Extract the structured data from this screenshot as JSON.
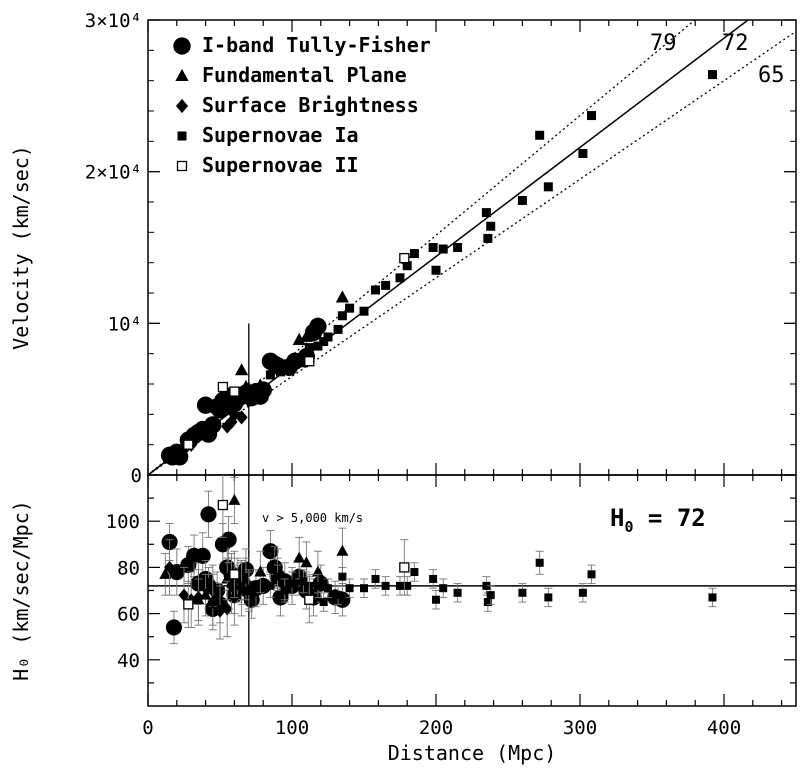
{
  "chart_data": [
    {
      "type": "scatter",
      "xlabel": "Distance (Mpc)",
      "ylabel": "Velocity (km/sec)",
      "xlim": [
        0,
        450
      ],
      "ylim": [
        0,
        30000
      ],
      "y_tick_labels": [
        "0",
        "10⁴",
        "2×10⁴",
        "3×10⁴"
      ],
      "y_ticks": [
        0,
        10000,
        20000,
        30000
      ],
      "legend_position": "top-left",
      "lines": [
        {
          "label": "79",
          "slope": 79,
          "style": "dotted"
        },
        {
          "label": "72",
          "slope": 72,
          "style": "solid"
        },
        {
          "label": "65",
          "slope": 65,
          "style": "dotted"
        }
      ],
      "vertical_line_x": 70,
      "series": [
        {
          "name": "I-band Tully-Fisher",
          "marker": "circle",
          "points": [
            [
              15,
              1300
            ],
            [
              17,
              1200
            ],
            [
              20,
              1500
            ],
            [
              22,
              1200
            ],
            [
              28,
              2300
            ],
            [
              32,
              2600
            ],
            [
              35,
              2800
            ],
            [
              38,
              3000
            ],
            [
              42,
              2700
            ],
            [
              40,
              4600
            ],
            [
              45,
              3300
            ],
            [
              48,
              4500
            ],
            [
              50,
              4300
            ],
            [
              52,
              4900
            ],
            [
              55,
              5200
            ],
            [
              58,
              4600
            ],
            [
              60,
              4700
            ],
            [
              62,
              5000
            ],
            [
              65,
              5200
            ],
            [
              68,
              5400
            ],
            [
              70,
              5300
            ],
            [
              72,
              5100
            ],
            [
              75,
              5500
            ],
            [
              78,
              5200
            ],
            [
              80,
              5600
            ],
            [
              85,
              7500
            ],
            [
              88,
              7300
            ],
            [
              90,
              7200
            ],
            [
              98,
              7100
            ],
            [
              102,
              7500
            ],
            [
              110,
              7800
            ],
            [
              115,
              9400
            ],
            [
              118,
              9800
            ]
          ]
        },
        {
          "name": "Fundamental Plane",
          "marker": "triangle",
          "points": [
            [
              38,
              2700
            ],
            [
              42,
              4600
            ],
            [
              55,
              5300
            ],
            [
              60,
              5000
            ],
            [
              65,
              6900
            ],
            [
              68,
              5800
            ],
            [
              70,
              5700
            ],
            [
              78,
              5900
            ],
            [
              95,
              7200
            ],
            [
              105,
              8900
            ],
            [
              110,
              9100
            ],
            [
              118,
              9900
            ],
            [
              135,
              11700
            ]
          ]
        },
        {
          "name": "Surface Brightness",
          "marker": "diamond",
          "points": [
            [
              20,
              1400
            ],
            [
              25,
              1700
            ],
            [
              30,
              2000
            ],
            [
              40,
              2800
            ],
            [
              45,
              3000
            ],
            [
              55,
              3200
            ],
            [
              58,
              3500
            ],
            [
              60,
              4000
            ],
            [
              65,
              3800
            ],
            [
              70,
              4900
            ]
          ]
        },
        {
          "name": "Supernovae Ia",
          "marker": "square",
          "points": [
            [
              85,
              6600
            ],
            [
              90,
              7000
            ],
            [
              92,
              6800
            ],
            [
              95,
              7300
            ],
            [
              100,
              7100
            ],
            [
              105,
              7700
            ],
            [
              108,
              7400
            ],
            [
              112,
              8400
            ],
            [
              118,
              8500
            ],
            [
              122,
              8800
            ],
            [
              125,
              9100
            ],
            [
              132,
              9600
            ],
            [
              135,
              10500
            ],
            [
              140,
              11000
            ],
            [
              150,
              10800
            ],
            [
              158,
              12200
            ],
            [
              165,
              12500
            ],
            [
              175,
              13000
            ],
            [
              180,
              13800
            ],
            [
              185,
              14600
            ],
            [
              198,
              15000
            ],
            [
              200,
              13500
            ],
            [
              205,
              14900
            ],
            [
              215,
              15000
            ],
            [
              235,
              17300
            ],
            [
              238,
              16400
            ],
            [
              236,
              15600
            ],
            [
              260,
              18100
            ],
            [
              272,
              22400
            ],
            [
              278,
              19000
            ],
            [
              302,
              21200
            ],
            [
              308,
              23700
            ],
            [
              392,
              26400
            ]
          ]
        },
        {
          "name": "Supernovae II",
          "marker": "open-square",
          "points": [
            [
              28,
              2000
            ],
            [
              52,
              5800
            ],
            [
              60,
              5500
            ],
            [
              112,
              7500
            ],
            [
              178,
              14300
            ]
          ]
        }
      ]
    },
    {
      "type": "scatter",
      "xlabel": "Distance (Mpc)",
      "ylabel": "H₀ (km/sec/Mpc)",
      "xlim": [
        0,
        450
      ],
      "ylim": [
        20,
        120
      ],
      "x_ticks": [
        0,
        100,
        200,
        300,
        400
      ],
      "y_ticks": [
        40,
        60,
        80,
        100
      ],
      "reference_line_y": 72,
      "vertical_line_x": 70,
      "annotation": "v > 5,000 km/s",
      "h0_label_main": "H",
      "h0_label_sub": "0",
      "h0_label_value": " = 72",
      "series": [
        {
          "name": "I-band Tully-Fisher",
          "marker": "circle",
          "points": [
            [
              15,
              91,
              8
            ],
            [
              18,
              54,
              7
            ],
            [
              20,
              78,
              10
            ],
            [
              28,
              81,
              8
            ],
            [
              32,
              85,
              9
            ],
            [
              35,
              73,
              9
            ],
            [
              38,
              85,
              10
            ],
            [
              40,
              75,
              8
            ],
            [
              42,
              72,
              8
            ],
            [
              42,
              103,
              10
            ],
            [
              45,
              62,
              7
            ],
            [
              48,
              70,
              8
            ],
            [
              50,
              64,
              8
            ],
            [
              52,
              90,
              9
            ],
            [
              55,
              80,
              10
            ],
            [
              56,
              92,
              10
            ],
            [
              58,
              77,
              9
            ],
            [
              60,
              68,
              8
            ],
            [
              62,
              73,
              8
            ],
            [
              65,
              74,
              8
            ],
            [
              68,
              79,
              9
            ],
            [
              70,
              70,
              8
            ],
            [
              72,
              66,
              8
            ],
            [
              75,
              71,
              8
            ],
            [
              80,
              72,
              8
            ],
            [
              85,
              87,
              9
            ],
            [
              88,
              80,
              9
            ],
            [
              90,
              76,
              8
            ],
            [
              92,
              67,
              8
            ],
            [
              95,
              74,
              8
            ],
            [
              100,
              72,
              8
            ],
            [
              105,
              76,
              8
            ],
            [
              110,
              70,
              8
            ],
            [
              115,
              67,
              8
            ],
            [
              120,
              73,
              8
            ],
            [
              130,
              67,
              7
            ],
            [
              135,
              66,
              7
            ]
          ]
        },
        {
          "name": "Fundamental Plane",
          "marker": "triangle",
          "points": [
            [
              12,
              77,
              9
            ],
            [
              35,
              66,
              9
            ],
            [
              40,
              68,
              9
            ],
            [
              45,
              72,
              9
            ],
            [
              55,
              75,
              9
            ],
            [
              60,
              109,
              10
            ],
            [
              62,
              75,
              9
            ],
            [
              65,
              73,
              9
            ],
            [
              68,
              75,
              9
            ],
            [
              70,
              70,
              9
            ],
            [
              78,
              78,
              9
            ],
            [
              90,
              79,
              9
            ],
            [
              105,
              84,
              9
            ],
            [
              110,
              82,
              9
            ],
            [
              118,
              78,
              9
            ],
            [
              135,
              87,
              10
            ]
          ]
        },
        {
          "name": "Surface Brightness",
          "marker": "diamond",
          "points": [
            [
              15,
              80,
              12
            ],
            [
              25,
              68,
              12
            ],
            [
              30,
              66,
              12
            ],
            [
              35,
              67,
              12
            ],
            [
              45,
              65,
              12
            ],
            [
              50,
              61,
              12
            ],
            [
              55,
              62,
              12
            ],
            [
              58,
              72,
              12
            ],
            [
              60,
              67,
              12
            ],
            [
              65,
              71,
              12
            ]
          ]
        },
        {
          "name": "Supernovae Ia",
          "marker": "square",
          "points": [
            [
              85,
              72,
              5
            ],
            [
              90,
              76,
              5
            ],
            [
              95,
              70,
              5
            ],
            [
              100,
              73,
              5
            ],
            [
              108,
              74,
              5
            ],
            [
              112,
              72,
              5
            ],
            [
              118,
              72,
              5
            ],
            [
              122,
              65,
              4
            ],
            [
              125,
              71,
              4
            ],
            [
              132,
              68,
              4
            ],
            [
              135,
              76,
              4
            ],
            [
              140,
              71,
              4
            ],
            [
              150,
              71,
              4
            ],
            [
              158,
              75,
              4
            ],
            [
              165,
              72,
              4
            ],
            [
              175,
              72,
              4
            ],
            [
              180,
              72,
              4
            ],
            [
              185,
              78,
              4
            ],
            [
              198,
              75,
              4
            ],
            [
              200,
              66,
              4
            ],
            [
              205,
              71,
              4
            ],
            [
              215,
              69,
              4
            ],
            [
              235,
              72,
              4
            ],
            [
              236,
              65,
              4
            ],
            [
              238,
              68,
              4
            ],
            [
              260,
              69,
              4
            ],
            [
              272,
              82,
              5
            ],
            [
              278,
              67,
              4
            ],
            [
              302,
              69,
              4
            ],
            [
              308,
              77,
              4
            ],
            [
              392,
              67,
              4
            ]
          ]
        },
        {
          "name": "Supernovae II",
          "marker": "open-square",
          "points": [
            [
              28,
              64,
              10
            ],
            [
              52,
              107,
              14
            ],
            [
              60,
              77,
              10
            ],
            [
              112,
              66,
              10
            ],
            [
              178,
              80,
              12
            ]
          ]
        }
      ]
    }
  ]
}
